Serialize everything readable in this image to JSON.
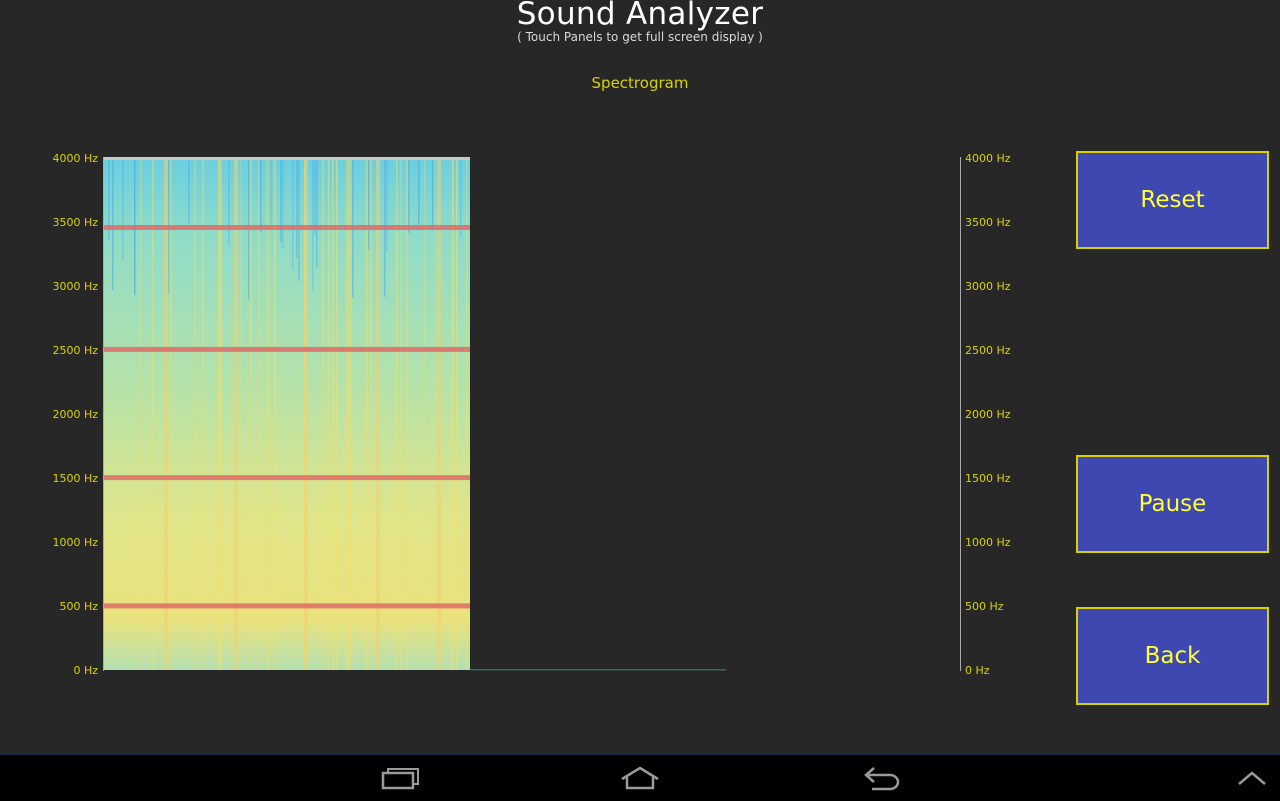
{
  "header": {
    "title": "Sound Analyzer",
    "subtitle": "( Touch Panels to get full screen display )"
  },
  "panel": {
    "label": "Spectrogram"
  },
  "axis": {
    "left_labels": [
      "4000 Hz",
      "3500 Hz",
      "3000 Hz",
      "2500 Hz",
      "2000 Hz",
      "1500 Hz",
      "1000 Hz",
      "500 Hz",
      "0 Hz"
    ],
    "right_labels": [
      "4000 Hz",
      "3500 Hz",
      "3000 Hz",
      "2500 Hz",
      "2000 Hz",
      "1500 Hz",
      "1000 Hz",
      "500 Hz",
      "0 Hz"
    ]
  },
  "spectrogram": {
    "freq_range_hz": [
      0,
      4000
    ],
    "strong_bands_hz": [
      500,
      1500,
      2500,
      3450
    ],
    "palette": {
      "low": "#7fd6d6",
      "mid": "#e8e87a",
      "high": "#e06a6a"
    }
  },
  "buttons": {
    "reset_label": "Reset",
    "pause_label": "Pause",
    "back_label": "Back"
  },
  "navbar": {
    "recent_icon": "recent-apps-icon",
    "home_icon": "home-icon",
    "back_icon": "back-arrow-icon",
    "menu_icon": "chevron-up-icon"
  },
  "colors": {
    "background": "#272727",
    "accent_text": "#d8d200",
    "button_fill": "#3f48b0",
    "button_text": "#ffff33"
  }
}
